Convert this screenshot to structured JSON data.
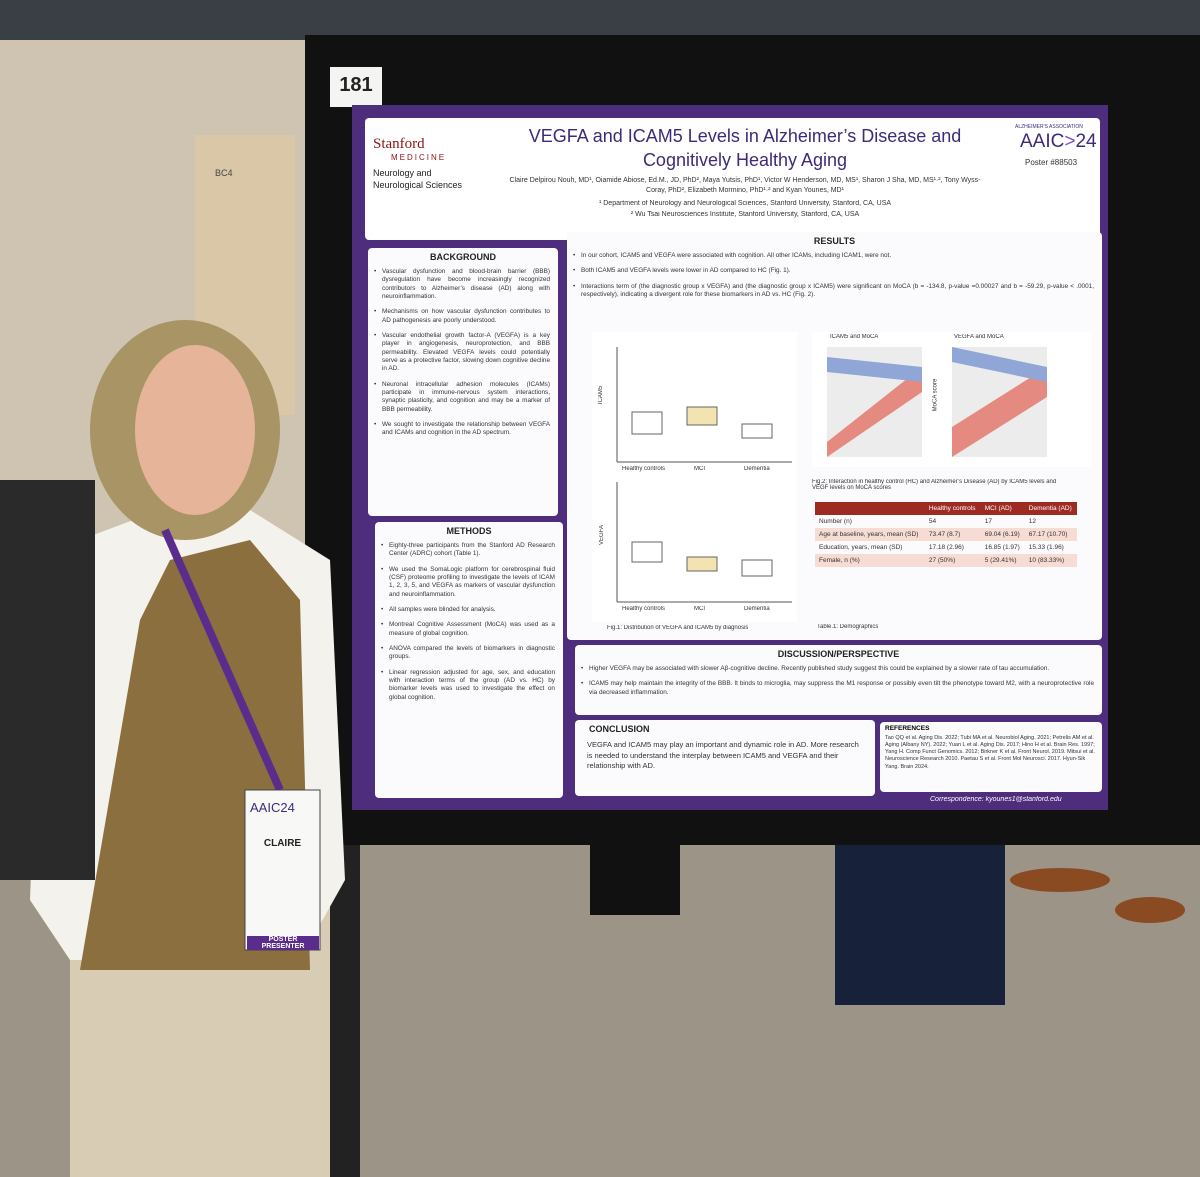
{
  "sign": "BC4",
  "poster": {
    "number": "181",
    "header": {
      "logo_title": "Stanford",
      "logo_subtitle": "MEDICINE",
      "department": "Neurology and Neurological Sciences",
      "title": "VEGFA and ICAM5 Levels in Alzheimer’s Disease and Cognitively Healthy Aging",
      "authors": "Claire Delpirou Nouh, MD¹, Oiamide Abiose, Ed.M., JD, PhD², Maya Yutsis, PhD¹, Victor W Henderson, MD, MS¹, Sharon J Sha, MD, MS¹·², Tony Wyss-Coray, PhD², Elizabeth Mormino, PhD¹·² and Kyan Younes, MD¹",
      "affiliations": [
        "¹ Department of Neurology and Neurological Sciences, Stanford University, Stanford, CA, USA",
        "² Wu Tsai Neurosciences Institute, Stanford University, Stanford, CA, USA"
      ],
      "association": "ALZHEIMER'S ASSOCIATION",
      "conference": "AAIC",
      "conference_year": "24",
      "poster_id": "Poster #88503"
    },
    "background": {
      "title": "BACKGROUND",
      "bullets": [
        "Vascular dysfunction and blood-brain barrier (BBB) dysregulation have become increasingly recognized contributors to Alzheimer’s disease (AD) along with neuroinflammation.",
        "Mechanisms on how vascular dysfunction contributes to AD pathogenesis are poorly understood.",
        "Vascular endothelial growth factor-A (VEGFA) is a key player in angiogenesis, neuroprotection, and BBB permeability. Elevated VEGFA levels could potentially serve as a protective factor, slowing down cognitive decline in AD.",
        "Neuronal intracellular adhesion molecules (ICAMs) participate in immune-nervous system interactions, synaptic plasticity, and cognition and may be a marker of BBB permeability.",
        "We sought to investigate the relationship between VEGFA and ICAMs and cognition in the AD spectrum."
      ]
    },
    "methods": {
      "title": "METHODS",
      "bullets": [
        "Eighty-three participants from the Stanford AD Research Center (ADRC) cohort (Table 1).",
        "We used the SomaLogic platform for cerebrospinal fluid (CSF) proteome profiling to investigate the levels of ICAM 1, 2, 3, 5, and VEGFA as markers of vascular dysfunction and neuroinflammation.",
        "All samples were blinded for analysis.",
        "Montreal Cognitive Assessment (MoCA) was used as a measure of global cognition.",
        "ANOVA compared the levels of biomarkers in diagnostic groups.",
        "Linear regression adjusted for age, sex, and education with interaction terms of the group (AD vs. HC) by biomarker levels was used to investigate the effect on global cognition."
      ]
    },
    "results": {
      "title": "RESULTS",
      "bullets": [
        "In our cohort, ICAM5 and VEGFA were associated with cognition. All other ICAMs, including ICAM1, were not.",
        "Both ICAM5 and VEGFA levels were lower in AD compared to HC (Fig. 1).",
        "Interactions term of (the diagnostic group x VEGFA) and (the diagnostic group x ICAM5) were significant on MoCA (b = -134.8, p-value =0.00027 and b = -59.29, p-value < .0001, respectively), indicating a divergent role for these biomarkers in AD vs. HC (Fig. 2)."
      ],
      "fig1": {
        "y_labels": [
          "ICAM5",
          "VEGFA"
        ],
        "groups": [
          "Healthy controls",
          "MCI",
          "Dementia"
        ],
        "caption": "Fig.1: Distribution of VEGFA and ICAM5 by diagnosis"
      },
      "fig2": {
        "titles": [
          "ICAM5 and MoCA",
          "VEGFA and MoCA"
        ],
        "y_label": "MoCA score",
        "caption": "Fig.2: Interaction in healthy control (HC) and Alzheimer’s Disease (AD) by ICAM5 levels and VEGF levels on MoCA scores"
      },
      "table": {
        "headers": [
          "Healthy controls",
          "MCI (AD)",
          "Dementia (AD)"
        ],
        "rows": [
          {
            "label": "Number (n)",
            "cells": [
              "54",
              "17",
              "12"
            ]
          },
          {
            "label": "Age at baseline, years, mean (SD)",
            "cells": [
              "73.47 (8.7)",
              "69.04 (6.19)",
              "67.17 (10.70)"
            ]
          },
          {
            "label": "Education, years, mean (SD)",
            "cells": [
              "17.18 (2.96)",
              "16.85 (1.97)",
              "15.33 (1.96)"
            ]
          },
          {
            "label": "Female, n (%)",
            "cells": [
              "27 (50%)",
              "5 (29.41%)",
              "10 (83.33%)"
            ]
          }
        ],
        "caption": "Table.1: Demographics"
      }
    },
    "discussion": {
      "title": "DISCUSSION/PERSPECTIVE",
      "bullets": [
        "Higher VEGFA may be associated with slower Aβ-cognitive decline. Recently published study suggest this could be explained by a slower rate of tau accumulation.",
        "ICAM5 may help maintain the integrity of the BBB. It binds to microglia, may suppress the M1 response or possibly even tilt the phenotype toward M2, with a neuroprotective role via decreased inflammation."
      ]
    },
    "conclusion": {
      "title": "CONCLUSION",
      "text": "VEGFA and ICAM5 may play an important and dynamic role in AD. More research is needed to understand the interplay between ICAM5 and VEGFA and their relationship with AD."
    },
    "references": {
      "title": "REFERENCES",
      "text": "Tao QQ et al. Aging Dis. 2022; Tubi MA et al. Neurobiol Aging. 2021; Petrelis AM et al. Aging (Albany NY). 2022; Yuan L et al. Aging Dis. 2017; Hino H et al. Brain Res. 1997; Yang H. Comp Funct Genomics. 2012; Birkner K et al. Front Neurol. 2019. Mitsui et al. Neuroscience Research 2010. Paetau S et al. Front Mol Neurosci. 2017. Hyun-Sik Yang. Brain 2024."
    },
    "correspondence": "Correspondence:  kyounes1@stanford.edu"
  },
  "badge": {
    "conference": "AAIC",
    "year": "24",
    "name": "CLAIRE",
    "role": "POSTER PRESENTER"
  }
}
